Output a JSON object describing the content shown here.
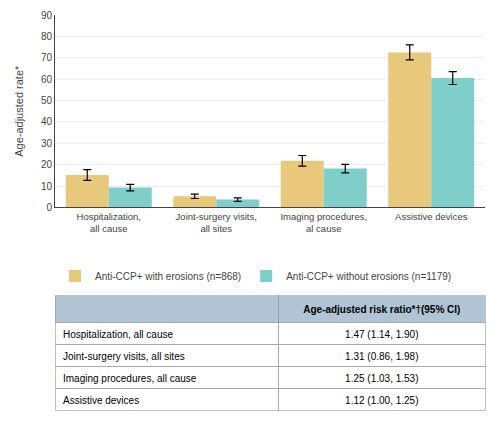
{
  "chart_data": {
    "type": "bar",
    "categories": [
      "Hospitalization,\nall cause",
      "Joint-surgery visits,\nall sites",
      "Imaging procedures,\nal cause",
      "Assistive devices"
    ],
    "series": [
      {
        "name": "Anti-CCP+ with erosions (n=868)",
        "color": "#E8C87A",
        "values": [
          15.2,
          5.2,
          21.8,
          72.5
        ],
        "error_low": [
          2.5,
          1.0,
          2.5,
          3.5
        ],
        "error_high": [
          2.5,
          1.0,
          2.5,
          3.5
        ]
      },
      {
        "name": "Anti-CCP+ without erosions (n=1179)",
        "color": "#7ECECA",
        "values": [
          9.3,
          3.7,
          18.2,
          60.5
        ],
        "error_low": [
          1.5,
          0.8,
          2.0,
          3.0
        ],
        "error_high": [
          1.5,
          0.8,
          2.0,
          3.0
        ]
      }
    ],
    "ylabel": "Age-adjusted rate*",
    "ylim": [
      0,
      90
    ],
    "yticks": [
      0,
      10,
      20,
      30,
      40,
      50,
      60,
      70,
      80,
      90
    ],
    "grid": true,
    "legend": "bottom",
    "table": {
      "header": "Age-adjusted risk ratio*†(95% CI)",
      "rows": [
        [
          "Hospitalization, all cause",
          "1.47 (1.14, 1.90)"
        ],
        [
          "Joint-surgery visits, all sites",
          "1.31 (0.86, 1.98)"
        ],
        [
          "Imaging procedures, all cause",
          "1.25 (1.03, 1.53)"
        ],
        [
          "Assistive devices",
          "1.12 (1.00, 1.25)"
        ]
      ],
      "header_color": "#B0C4D4",
      "cell_color": "#FFFFFF"
    }
  }
}
